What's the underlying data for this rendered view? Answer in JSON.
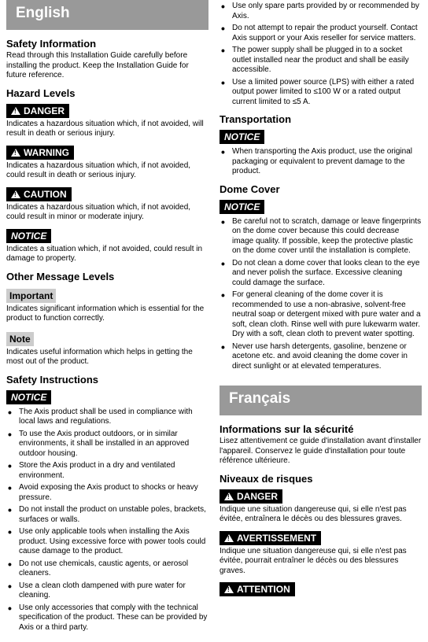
{
  "left": {
    "langHeader": "English",
    "safetyTitle": "Safety Information",
    "safetyBody": "Read through this Installation Guide carefully before installing the product. Keep the Installation Guide for future reference.",
    "hazardTitle": "Hazard Levels",
    "danger": {
      "label": "DANGER",
      "body": "Indicates a hazardous situation which, if not avoided, will result in death or serious injury."
    },
    "warning": {
      "label": "WARNING",
      "body": "Indicates a hazardous situation which, if not avoided, could result in death or serious injury."
    },
    "caution": {
      "label": "CAUTION",
      "body": "Indicates a hazardous situation which, if not avoided, could result in minor or moderate injury."
    },
    "notice": {
      "label": "NOTICE",
      "body": "Indicates a situation which, if not avoided, could result in damage to property."
    },
    "otherTitle": "Other Message Levels",
    "important": {
      "label": "Important",
      "body": "Indicates significant information which is essential for the product to function correctly."
    },
    "note": {
      "label": "Note",
      "body": "Indicates useful information which helps in getting the most out of the product."
    },
    "instrTitle": "Safety Instructions",
    "instrNotice": "NOTICE",
    "instrItems": [
      "The Axis product shall be used in compliance with local laws and regulations.",
      "To use the Axis product outdoors, or in similar environments, it shall be installed in an approved outdoor housing.",
      "Store the Axis product in a dry and ventilated environment.",
      "Avoid exposing the Axis product to shocks or heavy pressure.",
      "Do not install the product on unstable poles, brackets, surfaces or walls.",
      "Use only applicable tools when installing the Axis product. Using excessive force with power tools could cause damage to the product.",
      "Do not use chemicals, caustic agents, or aerosol cleaners.",
      "Use a clean cloth dampened with pure water for cleaning.",
      "Use only accessories that comply with the technical specification of the product. These can be provided by Axis or a third party."
    ]
  },
  "right": {
    "topItems": [
      "Use only spare parts provided by or recommended by Axis.",
      "Do not attempt to repair the product yourself. Contact Axis support or your Axis reseller for service matters.",
      "The power supply shall be plugged in to a socket outlet installed near the product and shall be easily accessible.",
      "Use a limited power source (LPS) with either a rated output power limited to ≤100 W or a rated output current limited to ≤5 A."
    ],
    "transTitle": "Transportation",
    "transNotice": "NOTICE",
    "transItems": [
      "When transporting the Axis product, use the original packaging or equivalent to prevent damage to the product."
    ],
    "domeTitle": "Dome Cover",
    "domeNotice": "NOTICE",
    "domeItems": [
      "Be careful not to scratch, damage or leave fingerprints on the dome cover because this could decrease image quality. If possible, keep the protective plastic on the dome cover until the installation is complete.",
      "Do not clean a dome cover that looks clean to the eye and never polish the surface. Excessive cleaning could damage the surface.",
      "For general cleaning of the dome cover it is recommended to use a non-abrasive, solvent-free neutral soap or detergent mixed with pure water and a soft, clean cloth. Rinse well with pure lukewarm water. Dry with a soft, clean cloth to prevent water spotting.",
      "Never use harsh detergents, gasoline, benzene or acetone etc. and avoid cleaning the dome cover in direct sunlight or at elevated temperatures."
    ],
    "frHeader": "Français",
    "frInfoTitle": "Informations sur la sécurité",
    "frInfoBody": "Lisez attentivement ce guide d'installation avant d'installer l'appareil. Conservez le guide d'installation pour toute référence ultérieure.",
    "frLevelsTitle": "Niveaux de risques",
    "frDanger": {
      "label": "DANGER",
      "body": "Indique une situation dangereuse qui, si elle n'est pas évitée, entraînera le décès ou des blessures graves."
    },
    "frWarn": {
      "label": "AVERTISSEMENT",
      "body": "Indique une situation dangereuse qui, si elle n'est pas évitée, pourrait entraîner le décès ou des blessures graves."
    },
    "frAttn": "ATTENTION"
  }
}
